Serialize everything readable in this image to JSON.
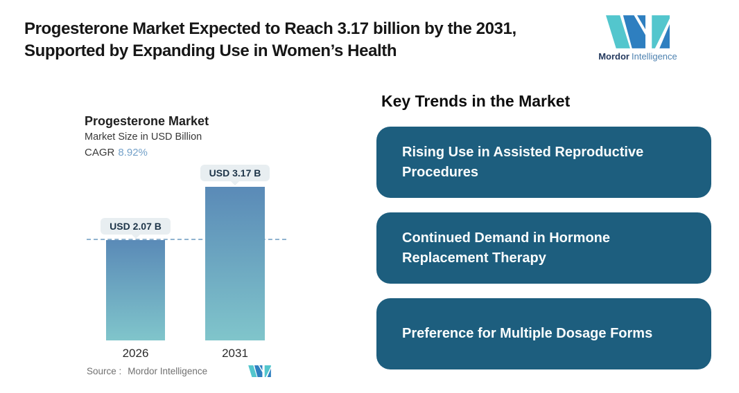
{
  "header": {
    "title_line1": "Progesterone Market Expected to Reach 3.17 billion by the 2031,",
    "title_line2": "Supported by Expanding Use in Women’s Health",
    "logo": {
      "name": "Mordor Intelligence",
      "brand_bold": "Mordor",
      "brand_light": "Intelligence"
    }
  },
  "chart_data": {
    "type": "bar",
    "title": "Progesterone Market",
    "subtitle": "Market Size in USD Billion",
    "cagr_label": "CAGR",
    "cagr_value": "8.92%",
    "categories": [
      "2026",
      "2031"
    ],
    "values": [
      2.07,
      3.17
    ],
    "value_labels": [
      "USD 2.07 B",
      "USD 3.17 B"
    ],
    "ylabel": "Market Size in USD Billion",
    "ylim": [
      0,
      3.17
    ],
    "grid": "off",
    "legend": "none",
    "reference_line": {
      "value": 2.07,
      "style": "dashed"
    }
  },
  "source": {
    "label": "Source :",
    "value": "Mordor Intelligence"
  },
  "trends": {
    "heading": "Key Trends in the Market",
    "cards": [
      {
        "lines": [
          "Rising Use in Assisted Reproductive",
          "Procedures"
        ]
      },
      {
        "lines": [
          "Continued Demand in Hormone",
          "Replacement Therapy"
        ]
      },
      {
        "lines": [
          "Preference for Multiple Dosage Forms"
        ]
      }
    ]
  },
  "colors": {
    "card_bg": "#1d5e7e",
    "bar_top": "#5a8ab7",
    "bar_bottom": "#80c5cb",
    "dashed_line": "#8fb3cf",
    "cagr_value": "#74a1c9",
    "callout_bg": "#e8eef1",
    "callout_text": "#1d3448",
    "logo_teal": "#53c6cd",
    "logo_blue": "#2e7fc0",
    "brand_dark": "#24395e",
    "brand_light_blue": "#4e82b0"
  }
}
